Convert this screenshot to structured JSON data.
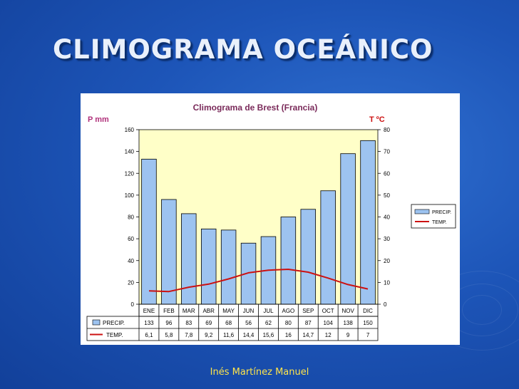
{
  "slide": {
    "title": "CLIMOGRAMA OCEÁNICO",
    "footer": "Inés Martínez Manuel",
    "background_color": "#1d55b8"
  },
  "chart_data": {
    "type": "bar",
    "title": "Climograma de Brest (Francia)",
    "ylabel": "P mm",
    "y2label": "T ºC",
    "ylim": [
      0,
      160
    ],
    "y2lim": [
      0,
      80
    ],
    "yticks": [
      "0",
      "20",
      "40",
      "60",
      "80",
      "100",
      "120",
      "140",
      "160"
    ],
    "y2ticks": [
      "0",
      "10",
      "20",
      "30",
      "40",
      "50",
      "60",
      "70",
      "80"
    ],
    "categories": [
      "ENE",
      "FEB",
      "MAR",
      "ABR",
      "MAY",
      "JUN",
      "JUL",
      "AGO",
      "SEP",
      "OCT",
      "NOV",
      "DIC"
    ],
    "series": [
      {
        "name": "PRECIP.",
        "kind": "bar",
        "axis": "left",
        "color": "#9dc3f0",
        "values": [
          133,
          96,
          83,
          69,
          68,
          56,
          62,
          80,
          87,
          104,
          138,
          150
        ],
        "labels": [
          "133",
          "96",
          "83",
          "69",
          "68",
          "56",
          "62",
          "80",
          "87",
          "104",
          "138",
          "150"
        ]
      },
      {
        "name": "TEMP.",
        "kind": "line",
        "axis": "right",
        "color": "#cc1111",
        "values": [
          6.1,
          5.8,
          7.8,
          9.2,
          11.6,
          14.4,
          15.6,
          16,
          14.7,
          12,
          9,
          7
        ],
        "labels": [
          "6,1",
          "5,8",
          "7,8",
          "9,2",
          "11,6",
          "14,4",
          "15,6",
          "16",
          "14,7",
          "12",
          "9",
          "7"
        ]
      }
    ],
    "plot_background": "#ffffc8",
    "grid": false,
    "legend": "right",
    "data_table": true
  }
}
